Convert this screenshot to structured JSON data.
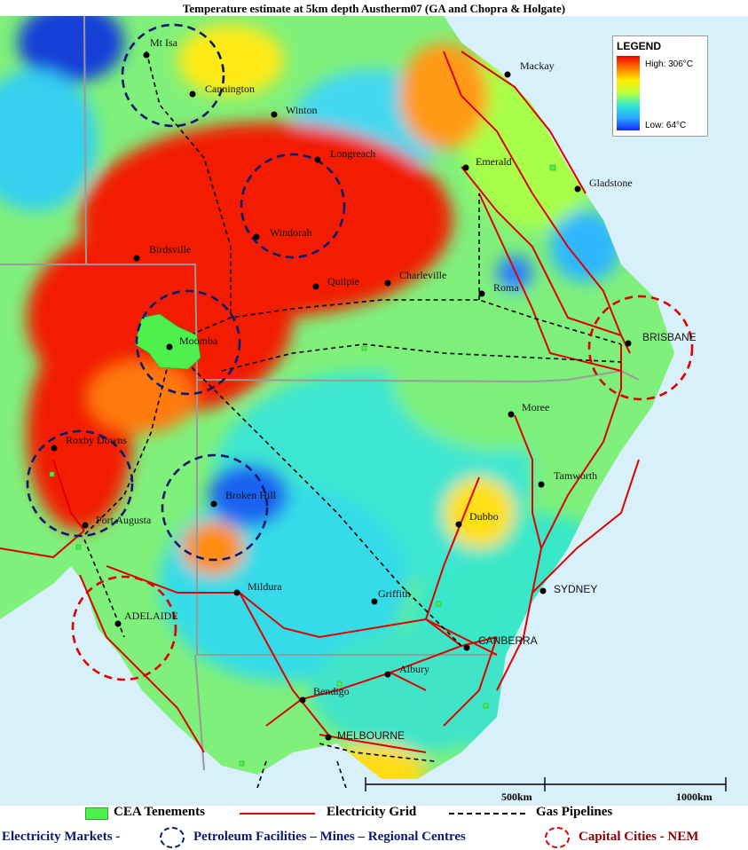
{
  "title": "Temperature estimate at 5km depth Austherm07 (GA and Chopra & Holgate)",
  "legend": {
    "title": "LEGEND",
    "high": "High: 306°C",
    "low": "Low: 64°C",
    "ramp_colors": [
      "#f00000",
      "#ff7a00",
      "#ffee00",
      "#b6ff3c",
      "#31e8d6",
      "#28a8ff",
      "#1428ff"
    ]
  },
  "places": {
    "mt_isa": "Mt Isa",
    "cannington": "Cannington",
    "winton": "Winton",
    "longreach": "Longreach",
    "windorah": "Windorah",
    "birdsville": "Birdsville",
    "quilpie": "Quilpie",
    "charleville": "Charleville",
    "roma": "Roma",
    "mackay": "Mackay",
    "emerald": "Emerald",
    "gladstone": "Gladstone",
    "brisbane": "BRISBANE",
    "moomba": "Moomba",
    "moree": "Moree",
    "tamworth": "Tamworth",
    "roxby_downs": "Roxby Downs",
    "broken_hill": "Broken Hill",
    "port_augusta": "Port Augusta",
    "dubbo": "Dubbo",
    "sydney": "SYDNEY",
    "mildura": "Mildura",
    "griffith": "Griffith",
    "adelaide": "ADELAIDE",
    "canberra": "CANBERRA",
    "albury": "Albury",
    "bendigo": "Bendigo",
    "melbourne": "MELBOURNE"
  },
  "scale": {
    "mid": "500km",
    "end": "1000km"
  },
  "bottom_legend": {
    "tenements": "CEA Tenements",
    "grid": "Electricity Grid",
    "pipelines": "Gas Pipelines",
    "markets_label": "Electricity Markets -",
    "petroleum": "Petroleum Facilities – Mines – Regional Centres",
    "capitals": "Capital Cities - NEM"
  },
  "colors": {
    "grid_line": "#e00000",
    "pipeline": "#000000",
    "regional_circle": "#0a1a6e",
    "capital_circle": "#e00000",
    "tenement": "#4ef04e",
    "sea": "#d8f0fa"
  }
}
